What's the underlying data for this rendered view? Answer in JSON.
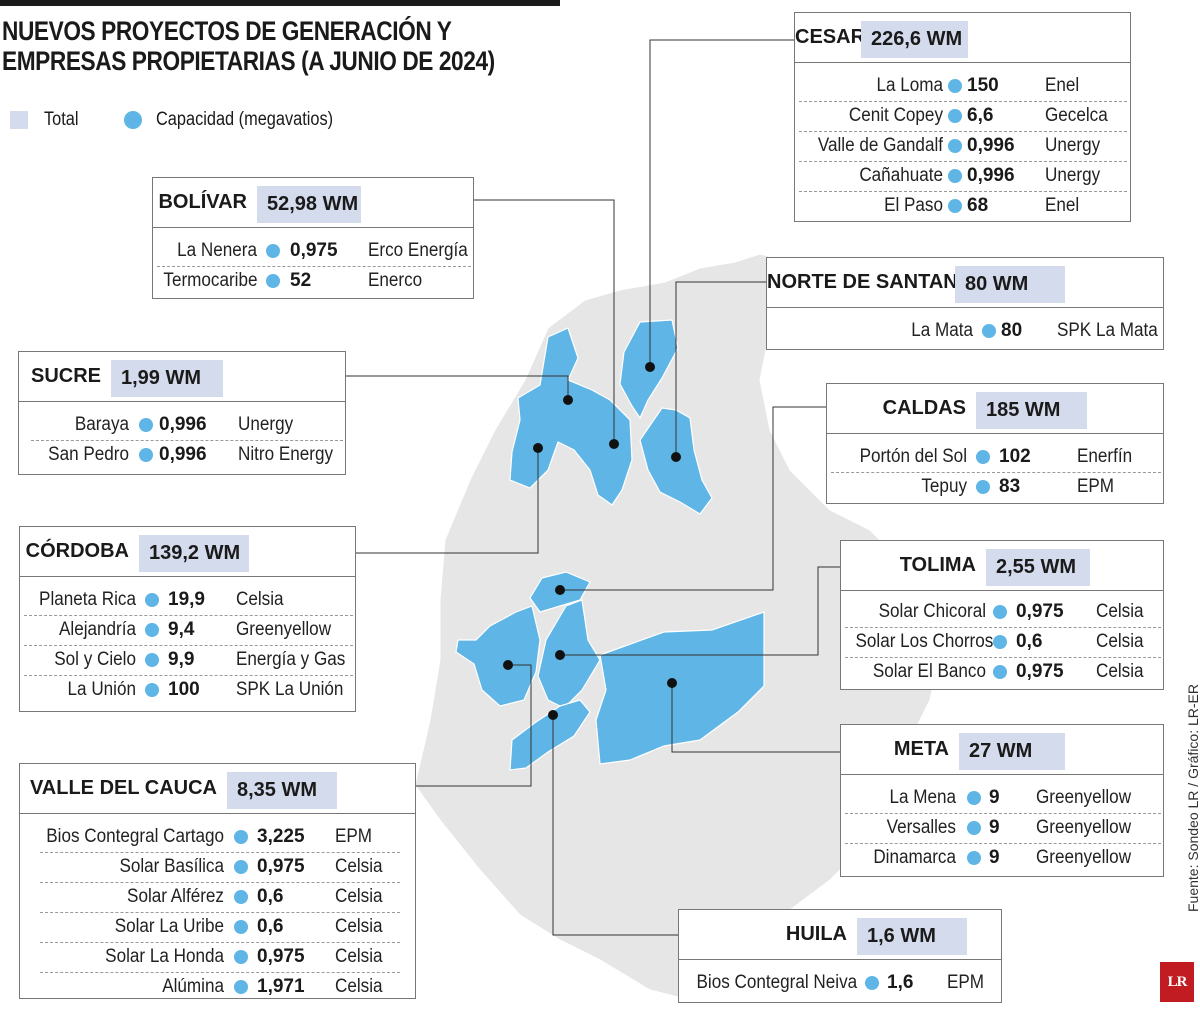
{
  "title": "NUEVOS PROYECTOS DE GENERACIÓN Y EMPRESAS PROPIETARIAS (A JUNIO DE 2024)",
  "legend": {
    "total": "Total",
    "capacity": "Capacidad (megavatios)"
  },
  "colors": {
    "total_bg": "#d4dbec",
    "dot": "#5eb5e6",
    "region_fill": "#5eb5e6",
    "country_fill": "#e6e6e6"
  },
  "departments": [
    {
      "key": "cesar",
      "name": "CESAR",
      "total": "226,6 WM",
      "projects": [
        {
          "location": "La Loma",
          "capacity": "150",
          "company": "Enel"
        },
        {
          "location": "Cenit Copey",
          "capacity": "6,6",
          "company": "Gecelca"
        },
        {
          "location": "Valle de Gandalf",
          "capacity": "0,996",
          "company": "Unergy"
        },
        {
          "location": "Cañahuate",
          "capacity": "0,996",
          "company": "Unergy"
        },
        {
          "location": "El Paso",
          "capacity": "68",
          "company": "Enel"
        }
      ]
    },
    {
      "key": "bolivar",
      "name": "BOLÍVAR",
      "total": "52,98 WM",
      "projects": [
        {
          "location": "La Nenera",
          "capacity": "0,975",
          "company": "Erco Energía"
        },
        {
          "location": "Termocaribe",
          "capacity": "52",
          "company": "Enerco"
        }
      ]
    },
    {
      "key": "norte-de-santander",
      "name": "NORTE DE SANTANDER",
      "total": "80 WM",
      "projects": [
        {
          "location": "La Mata",
          "capacity": "80",
          "company": "SPK La Mata"
        }
      ]
    },
    {
      "key": "sucre",
      "name": "SUCRE",
      "total": "1,99 WM",
      "projects": [
        {
          "location": "Baraya",
          "capacity": "0,996",
          "company": "Unergy"
        },
        {
          "location": "San Pedro",
          "capacity": "0,996",
          "company": "Nitro Energy"
        }
      ]
    },
    {
      "key": "caldas",
      "name": "CALDAS",
      "total": "185 WM",
      "projects": [
        {
          "location": "Portón del Sol",
          "capacity": "102",
          "company": "Enerfín"
        },
        {
          "location": "Tepuy",
          "capacity": "83",
          "company": "EPM"
        }
      ]
    },
    {
      "key": "cordoba",
      "name": "CÓRDOBA",
      "total": "139,2 WM",
      "projects": [
        {
          "location": "Planeta Rica",
          "capacity": "19,9",
          "company": "Celsia"
        },
        {
          "location": "Alejandría",
          "capacity": "9,4",
          "company": "Greenyellow"
        },
        {
          "location": "Sol y Cielo",
          "capacity": "9,9",
          "company": "Energía y Gas"
        },
        {
          "location": "La Unión",
          "capacity": "100",
          "company": "SPK La Unión"
        }
      ]
    },
    {
      "key": "tolima",
      "name": "TOLIMA",
      "total": "2,55 WM",
      "projects": [
        {
          "location": "Solar Chicoral",
          "capacity": "0,975",
          "company": "Celsia"
        },
        {
          "location": "Solar Los Chorros",
          "capacity": "0,6",
          "company": "Celsia"
        },
        {
          "location": "Solar El Banco",
          "capacity": "0,975",
          "company": "Celsia"
        }
      ]
    },
    {
      "key": "meta",
      "name": "META",
      "total": "27 WM",
      "projects": [
        {
          "location": "La Mena",
          "capacity": "9",
          "company": "Greenyellow"
        },
        {
          "location": "Versalles",
          "capacity": "9",
          "company": "Greenyellow"
        },
        {
          "location": "Dinamarca",
          "capacity": "9",
          "company": "Greenyellow"
        }
      ]
    },
    {
      "key": "valle-del-cauca",
      "name": "VALLE DEL CAUCA",
      "total": "8,35 WM",
      "projects": [
        {
          "location": "Bios Contegral Cartago",
          "capacity": "3,225",
          "company": "EPM"
        },
        {
          "location": "Solar Basílica",
          "capacity": "0,975",
          "company": "Celsia"
        },
        {
          "location": "Solar Alférez",
          "capacity": "0,6",
          "company": "Celsia"
        },
        {
          "location": "Solar La Uribe",
          "capacity": "0,6",
          "company": "Celsia"
        },
        {
          "location": "Solar La Honda",
          "capacity": "0,975",
          "company": "Celsia"
        },
        {
          "location": "Alúmina",
          "capacity": "1,971",
          "company": "Celsia"
        }
      ]
    },
    {
      "key": "huila",
      "name": "HUILA",
      "total": "1,6 WM",
      "projects": [
        {
          "location": "Bios Contegral Neiva",
          "capacity": "1,6",
          "company": "EPM"
        }
      ]
    }
  ],
  "source": "Fuente: Sondeo LR / Gráfico: LR-ER",
  "logo": "LR"
}
